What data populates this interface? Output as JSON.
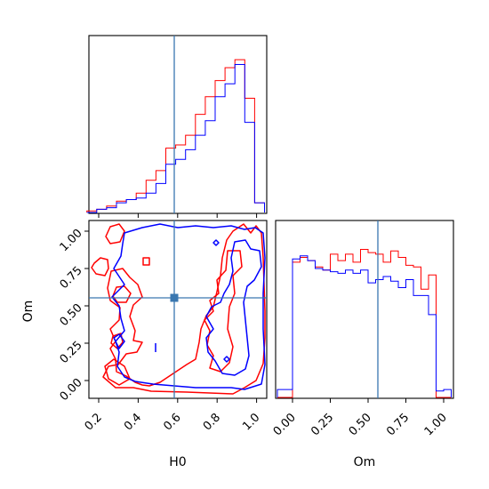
{
  "chart_data": {
    "type": "corner",
    "parameters": [
      "H0",
      "Om"
    ],
    "truths": {
      "H0": 0.58,
      "Om": 0.56
    },
    "colors": {
      "run_a": "#ff0000",
      "run_b": "#0000ff",
      "truth": "#3a77b0"
    },
    "x_ticks": {
      "H0": [
        "0.2",
        "0.4",
        "0.6",
        "0.8",
        "1.0"
      ],
      "Om": [
        "0.00",
        "0.25",
        "0.50",
        "0.75",
        "1.00"
      ]
    },
    "y_ticks": {
      "Om": [
        "0.00",
        "0.25",
        "0.50",
        "0.75",
        "1.00"
      ]
    },
    "axis_labels": {
      "x_left": "H0",
      "x_right": "Om",
      "y_left": "Om"
    },
    "hist_H0": {
      "bins": [
        0.14,
        0.19,
        0.24,
        0.29,
        0.34,
        0.39,
        0.44,
        0.49,
        0.54,
        0.59,
        0.64,
        0.69,
        0.74,
        0.79,
        0.84,
        0.89,
        0.94,
        0.99,
        1.04
      ],
      "run_a": [
        0.01,
        0.02,
        0.04,
        0.07,
        0.08,
        0.12,
        0.2,
        0.26,
        0.4,
        0.42,
        0.48,
        0.61,
        0.72,
        0.82,
        0.9,
        0.95,
        0.71,
        0.06
      ],
      "run_b": [
        0.0,
        0.02,
        0.03,
        0.06,
        0.08,
        0.09,
        0.12,
        0.18,
        0.3,
        0.33,
        0.39,
        0.48,
        0.57,
        0.72,
        0.8,
        0.92,
        0.56,
        0.06
      ]
    },
    "hist_Om": {
      "bins": [
        -0.1,
        -0.05,
        0.0,
        0.05,
        0.1,
        0.15,
        0.2,
        0.25,
        0.3,
        0.35,
        0.4,
        0.45,
        0.5,
        0.55,
        0.6,
        0.65,
        0.7,
        0.75,
        0.8,
        0.85,
        0.9,
        0.95,
        1.0,
        1.05
      ],
      "run_a": [
        0.0,
        0.0,
        0.85,
        0.88,
        0.86,
        0.82,
        0.8,
        0.9,
        0.86,
        0.9,
        0.85,
        0.93,
        0.91,
        0.9,
        0.85,
        0.92,
        0.88,
        0.83,
        0.82,
        0.68,
        0.77,
        0.0,
        0.0
      ],
      "run_b": [
        0.05,
        0.05,
        0.87,
        0.89,
        0.86,
        0.81,
        0.8,
        0.79,
        0.78,
        0.8,
        0.78,
        0.8,
        0.72,
        0.74,
        0.76,
        0.73,
        0.69,
        0.74,
        0.64,
        0.64,
        0.52,
        0.04,
        0.05
      ]
    }
  }
}
